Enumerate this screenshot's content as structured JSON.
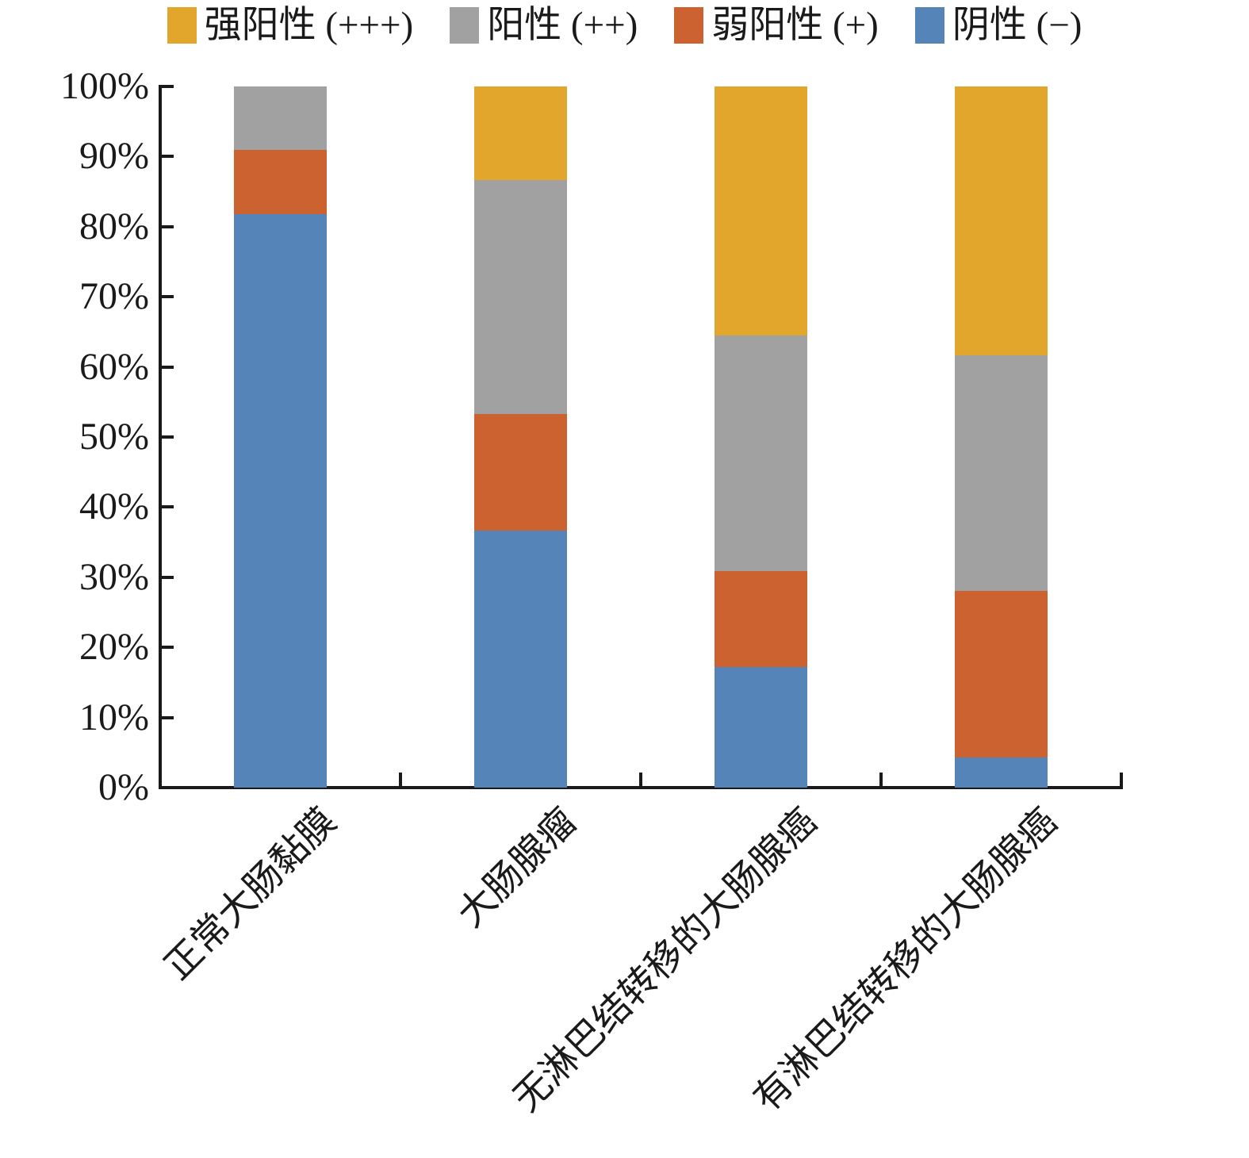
{
  "legend": {
    "items": [
      {
        "id": "strong-positive",
        "label": "强阳性 (+++)",
        "color": "#E2A62D"
      },
      {
        "id": "positive",
        "label": "阳性 (++)",
        "color": "#A1A1A1"
      },
      {
        "id": "weak-positive",
        "label": "弱阳性 (+)",
        "color": "#CB622F"
      },
      {
        "id": "negative",
        "label": "阴性 (−)",
        "color": "#5484B8"
      }
    ]
  },
  "chart_data": {
    "type": "bar",
    "stacked": true,
    "percent_stacked": true,
    "title": "",
    "xlabel": "",
    "ylabel": "",
    "grid": false,
    "legend_position": "top",
    "ylim": [
      0,
      100
    ],
    "y_ticks": [
      "0%",
      "10%",
      "20%",
      "30%",
      "40%",
      "50%",
      "60%",
      "70%",
      "80%",
      "90%",
      "100%"
    ],
    "categories": [
      "正常大肠黏膜",
      "大肠腺瘤",
      "无淋巴结转移的大肠腺癌",
      "有淋巴结转移的大肠腺癌"
    ],
    "series": [
      {
        "name": "阴性 (−)",
        "id": "negative",
        "color": "#5484B8",
        "values": [
          81.8,
          36.7,
          17.2,
          4.3
        ]
      },
      {
        "name": "弱阳性 (+)",
        "id": "weak-positive",
        "color": "#CB622F",
        "values": [
          9.1,
          16.6,
          13.7,
          23.8
        ]
      },
      {
        "name": "阳性 (++)",
        "id": "positive",
        "color": "#A1A1A1",
        "values": [
          9.1,
          33.4,
          33.6,
          33.6
        ]
      },
      {
        "name": "强阳性 (+++)",
        "id": "strong-positive",
        "color": "#E2A62D",
        "values": [
          0,
          13.3,
          35.5,
          38.3
        ]
      }
    ]
  }
}
